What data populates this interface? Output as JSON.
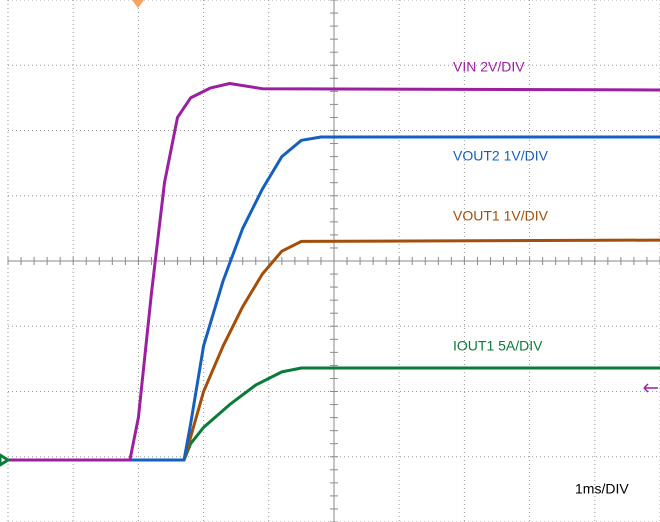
{
  "chart_data": {
    "type": "line",
    "xlim": [
      0,
      10
    ],
    "ylim": [
      0,
      8
    ],
    "xticks": [
      0,
      1,
      2,
      3,
      4,
      5,
      6,
      7,
      8,
      9,
      10
    ],
    "yticks": [
      0,
      1,
      2,
      3,
      4,
      5,
      6,
      7,
      8
    ],
    "grid": true,
    "center_axes": [
      5,
      4
    ],
    "time_scale": "1ms/DIV",
    "series": [
      {
        "name": "VIN 2V/DIV",
        "color": "#9b1fa0",
        "x": [
          0,
          1.87,
          2.0,
          2.2,
          2.4,
          2.6,
          2.8,
          3.1,
          3.4,
          3.9,
          10
        ],
        "values": [
          0.95,
          0.95,
          1.6,
          3.5,
          5.2,
          6.2,
          6.5,
          6.65,
          6.72,
          6.64,
          6.62
        ]
      },
      {
        "name": "VOUT2 1V/DIV",
        "color": "#1560bd",
        "x": [
          0,
          2.7,
          2.8,
          3.0,
          3.3,
          3.6,
          3.9,
          4.2,
          4.5,
          4.8,
          10
        ],
        "values": [
          0.95,
          0.95,
          1.5,
          2.7,
          3.7,
          4.5,
          5.1,
          5.6,
          5.85,
          5.9,
          5.9
        ]
      },
      {
        "name": "VOUT1 1V/DIV",
        "color": "#a34e0a",
        "x": [
          0,
          2.7,
          2.8,
          3.0,
          3.3,
          3.6,
          3.9,
          4.2,
          4.5,
          10
        ],
        "values": [
          0.95,
          0.95,
          1.3,
          2.0,
          2.7,
          3.3,
          3.8,
          4.15,
          4.3,
          4.32
        ]
      },
      {
        "name": "IOUT1 5A/DIV",
        "color": "#0b7a3a",
        "x": [
          0,
          2.7,
          2.8,
          3.0,
          3.4,
          3.8,
          4.2,
          4.5,
          10
        ],
        "values": [
          0.95,
          0.95,
          1.2,
          1.45,
          1.8,
          2.1,
          2.3,
          2.36,
          2.36
        ]
      }
    ]
  }
}
